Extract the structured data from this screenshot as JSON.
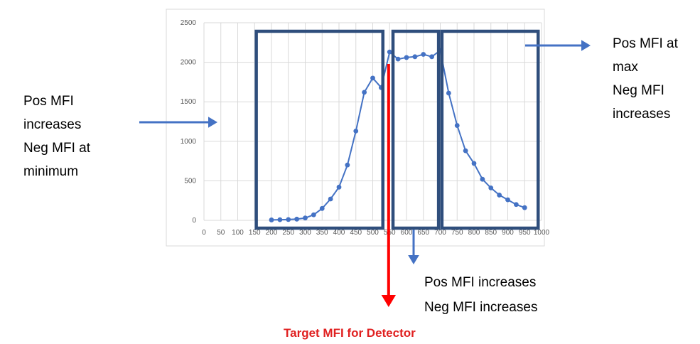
{
  "chart_data": {
    "type": "line",
    "title": "",
    "xlabel": "",
    "ylabel": "",
    "xlim": [
      0,
      1000
    ],
    "ylim": [
      0,
      2500
    ],
    "x_ticks": [
      "0",
      "50",
      "100",
      "150",
      "200",
      "250",
      "300",
      "350",
      "400",
      "450",
      "500",
      "550",
      "600",
      "650",
      "700",
      "750",
      "800",
      "850",
      "900",
      "950",
      "1000"
    ],
    "y_ticks": [
      "0",
      "500",
      "1000",
      "1500",
      "2000",
      "2500"
    ],
    "grid": true,
    "legend": "none",
    "series": [
      {
        "color": "#4472C4",
        "points": [
          [
            200,
            5
          ],
          [
            225,
            8
          ],
          [
            250,
            10
          ],
          [
            275,
            15
          ],
          [
            300,
            30
          ],
          [
            325,
            70
          ],
          [
            350,
            150
          ],
          [
            375,
            270
          ],
          [
            400,
            420
          ],
          [
            425,
            700
          ],
          [
            450,
            1130
          ],
          [
            475,
            1620
          ],
          [
            500,
            1800
          ],
          [
            525,
            1680
          ],
          [
            550,
            2130
          ],
          [
            575,
            2040
          ],
          [
            600,
            2060
          ],
          [
            625,
            2070
          ],
          [
            650,
            2100
          ],
          [
            675,
            2070
          ],
          [
            700,
            2150
          ],
          [
            725,
            1610
          ],
          [
            750,
            1200
          ],
          [
            775,
            880
          ],
          [
            800,
            720
          ],
          [
            825,
            520
          ],
          [
            850,
            410
          ],
          [
            875,
            320
          ],
          [
            900,
            260
          ],
          [
            925,
            200
          ],
          [
            950,
            160
          ]
        ]
      }
    ],
    "regions": [
      {
        "from": 155,
        "to": 530
      },
      {
        "from": 560,
        "to": 695
      },
      {
        "from": 705,
        "to": 990
      }
    ],
    "target_x": 547
  },
  "annotations": {
    "left_lines": [
      "Pos MFI",
      "increases",
      "Neg MFI at",
      "minimum"
    ],
    "right_lines": [
      "Pos MFI at",
      "max",
      "Neg MFI",
      "increases"
    ],
    "bottom_lines": [
      "Pos MFI increases",
      "Neg MFI increases"
    ],
    "target_label": "Target MFI for Detector"
  },
  "colors": {
    "box": "#2F4E7C",
    "arrow_blue": "#4472C4",
    "series": "#4472C4",
    "target": "#FF0000",
    "target_text": "#E02020",
    "grid": "#D9D9D9",
    "frame": "#D9D9D9"
  }
}
